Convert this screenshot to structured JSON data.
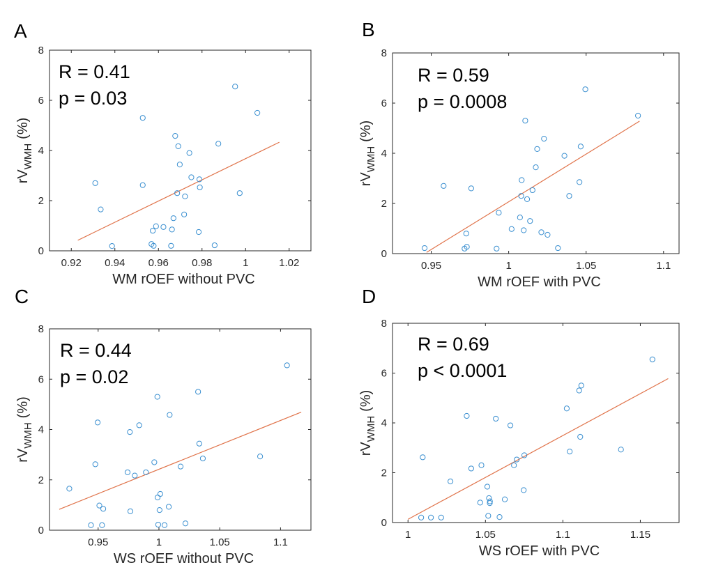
{
  "figure": {
    "colors": {
      "points": "#3a8fd0",
      "fit_line": "#e0734a",
      "axes": "#262626"
    }
  },
  "chart_data": [
    {
      "type": "scatter",
      "panel_label": "A",
      "stats": [
        "R = 0.41",
        "p = 0.03"
      ],
      "xlabel": "WM rOEF without PVC",
      "ylabel": {
        "main": "rV",
        "sub": "WMH",
        "unit": "(%)"
      },
      "xlim": [
        0.91,
        1.03
      ],
      "ylim": [
        0,
        8
      ],
      "xticks": [
        0.92,
        0.94,
        0.96,
        0.98,
        1.0,
        1.02
      ],
      "xtick_labels": [
        "0.92",
        "0.94",
        "0.96",
        "0.98",
        "1",
        "1.02"
      ],
      "yticks": [
        0,
        2,
        4,
        6,
        8
      ],
      "ytick_labels": [
        "0",
        "2",
        "4",
        "6",
        "8"
      ],
      "fit_line": [
        [
          0.923,
          0.42
        ],
        [
          1.0155,
          4.33
        ]
      ],
      "points": [
        [
          0.931,
          2.7
        ],
        [
          0.9335,
          1.65
        ],
        [
          0.9387,
          0.19
        ],
        [
          0.9528,
          5.3
        ],
        [
          0.9528,
          2.62
        ],
        [
          0.9568,
          0.27
        ],
        [
          0.9574,
          0.8
        ],
        [
          0.9578,
          0.2
        ],
        [
          0.9589,
          0.98
        ],
        [
          0.9623,
          0.95
        ],
        [
          0.9658,
          0.2
        ],
        [
          0.9662,
          0.85
        ],
        [
          0.9669,
          1.3
        ],
        [
          0.9677,
          4.58
        ],
        [
          0.9686,
          2.3
        ],
        [
          0.9691,
          4.17
        ],
        [
          0.9698,
          3.44
        ],
        [
          0.9718,
          1.45
        ],
        [
          0.9722,
          2.17
        ],
        [
          0.9742,
          3.9
        ],
        [
          0.9751,
          2.93
        ],
        [
          0.9785,
          0.75
        ],
        [
          0.9788,
          2.85
        ],
        [
          0.979,
          2.53
        ],
        [
          0.9858,
          0.22
        ],
        [
          0.9875,
          4.27
        ],
        [
          0.9952,
          6.55
        ],
        [
          0.9973,
          2.3
        ],
        [
          1.0054,
          5.5
        ]
      ]
    },
    {
      "type": "scatter",
      "panel_label": "B",
      "stats": [
        "R = 0.59",
        "p = 0.0008"
      ],
      "xlabel": "WM rOEF with PVC",
      "ylabel": {
        "main": "rV",
        "sub": "WMH",
        "unit": "(%)"
      },
      "xlim": [
        0.925,
        1.11
      ],
      "ylim": [
        0,
        8
      ],
      "xticks": [
        0.95,
        1.0,
        1.05,
        1.1
      ],
      "xtick_labels": [
        "0.95",
        "1",
        "1.05",
        "1.1"
      ],
      "yticks": [
        0,
        2,
        4,
        6,
        8
      ],
      "ytick_labels": [
        "0",
        "2",
        "4",
        "6",
        "8"
      ],
      "fit_line": [
        [
          0.947,
          0.05
        ],
        [
          1.0845,
          5.28
        ]
      ],
      "points": [
        [
          0.9457,
          0.22
        ],
        [
          0.958,
          2.7
        ],
        [
          0.9715,
          0.2
        ],
        [
          0.9726,
          0.8
        ],
        [
          0.973,
          0.27
        ],
        [
          0.9758,
          2.6
        ],
        [
          0.9922,
          0.2
        ],
        [
          0.9936,
          1.63
        ],
        [
          1.0019,
          0.98
        ],
        [
          1.0073,
          1.44
        ],
        [
          1.0081,
          2.3
        ],
        [
          1.0084,
          2.93
        ],
        [
          1.0097,
          0.93
        ],
        [
          1.0107,
          5.3
        ],
        [
          1.0119,
          2.17
        ],
        [
          1.0138,
          1.3
        ],
        [
          1.0154,
          2.53
        ],
        [
          1.0175,
          3.44
        ],
        [
          1.0184,
          4.17
        ],
        [
          1.0211,
          0.85
        ],
        [
          1.0228,
          4.58
        ],
        [
          1.0251,
          0.75
        ],
        [
          1.0318,
          0.22
        ],
        [
          1.036,
          3.9
        ],
        [
          1.0391,
          2.3
        ],
        [
          1.0457,
          2.85
        ],
        [
          1.0465,
          4.27
        ],
        [
          1.0495,
          6.55
        ],
        [
          1.0835,
          5.5
        ]
      ]
    },
    {
      "type": "scatter",
      "panel_label": "C",
      "stats": [
        "R = 0.44",
        "p = 0.02"
      ],
      "xlabel": "WS rOEF without PVC",
      "ylabel": {
        "main": "rV",
        "sub": "WMH",
        "unit": "(%)"
      },
      "xlim": [
        0.91,
        1.125
      ],
      "ylim": [
        0,
        8
      ],
      "xticks": [
        0.95,
        1.0,
        1.05,
        1.1
      ],
      "xtick_labels": [
        "0.95",
        "1",
        "1.05",
        "1.1"
      ],
      "yticks": [
        0,
        2,
        4,
        6,
        8
      ],
      "ytick_labels": [
        "0",
        "2",
        "4",
        "6",
        "8"
      ],
      "fit_line": [
        [
          0.918,
          0.83
        ],
        [
          1.117,
          4.69
        ]
      ],
      "points": [
        [
          0.9263,
          1.65
        ],
        [
          0.9441,
          0.2
        ],
        [
          0.9477,
          2.62
        ],
        [
          0.9496,
          4.28
        ],
        [
          0.951,
          0.98
        ],
        [
          0.9532,
          0.2
        ],
        [
          0.9542,
          0.85
        ],
        [
          0.9742,
          2.3
        ],
        [
          0.9761,
          3.9
        ],
        [
          0.9765,
          0.75
        ],
        [
          0.9801,
          2.17
        ],
        [
          0.9838,
          4.17
        ],
        [
          0.9893,
          2.3
        ],
        [
          0.9962,
          2.7
        ],
        [
          0.9987,
          5.3
        ],
        [
          0.9989,
          1.3
        ],
        [
          0.9994,
          0.22
        ],
        [
          1.0005,
          0.8
        ],
        [
          1.0011,
          1.44
        ],
        [
          1.0046,
          0.2
        ],
        [
          1.0081,
          0.93
        ],
        [
          1.0088,
          4.58
        ],
        [
          1.0178,
          2.53
        ],
        [
          1.0218,
          0.27
        ],
        [
          1.0322,
          5.5
        ],
        [
          1.0332,
          3.44
        ],
        [
          1.0361,
          2.85
        ],
        [
          1.0832,
          2.93
        ],
        [
          1.1053,
          6.55
        ]
      ]
    },
    {
      "type": "scatter",
      "panel_label": "D",
      "stats": [
        "R = 0.69",
        "p < 0.0001"
      ],
      "xlabel": "WS rOEF with PVC",
      "ylabel": {
        "main": "rV",
        "sub": "WMH",
        "unit": "(%)"
      },
      "xlim": [
        0.99,
        1.175
      ],
      "ylim": [
        0,
        8
      ],
      "xticks": [
        1.0,
        1.05,
        1.1,
        1.15
      ],
      "xtick_labels": [
        "1",
        "1.05",
        "1.1",
        "1.15"
      ],
      "yticks": [
        0,
        2,
        4,
        6,
        8
      ],
      "ytick_labels": [
        "0",
        "2",
        "4",
        "6",
        "8"
      ],
      "fit_line": [
        [
          1.0,
          0.13
        ],
        [
          1.168,
          5.78
        ]
      ],
      "points": [
        [
          1.0085,
          0.2
        ],
        [
          1.0095,
          2.62
        ],
        [
          1.0148,
          0.2
        ],
        [
          1.0214,
          0.2
        ],
        [
          1.0274,
          1.65
        ],
        [
          1.0379,
          4.28
        ],
        [
          1.0408,
          2.17
        ],
        [
          1.0466,
          0.8
        ],
        [
          1.0474,
          2.3
        ],
        [
          1.0512,
          1.44
        ],
        [
          1.0518,
          0.27
        ],
        [
          1.0523,
          0.98
        ],
        [
          1.0528,
          0.78
        ],
        [
          1.0529,
          0.85
        ],
        [
          1.0567,
          4.17
        ],
        [
          1.0591,
          0.22
        ],
        [
          1.0625,
          0.93
        ],
        [
          1.0661,
          3.9
        ],
        [
          1.0684,
          2.3
        ],
        [
          1.0702,
          2.53
        ],
        [
          1.0747,
          1.3
        ],
        [
          1.0751,
          2.7
        ],
        [
          1.1025,
          4.58
        ],
        [
          1.1044,
          2.85
        ],
        [
          1.1105,
          5.3
        ],
        [
          1.1112,
          3.44
        ],
        [
          1.1119,
          5.5
        ],
        [
          1.1375,
          2.93
        ],
        [
          1.1578,
          6.55
        ]
      ]
    }
  ]
}
